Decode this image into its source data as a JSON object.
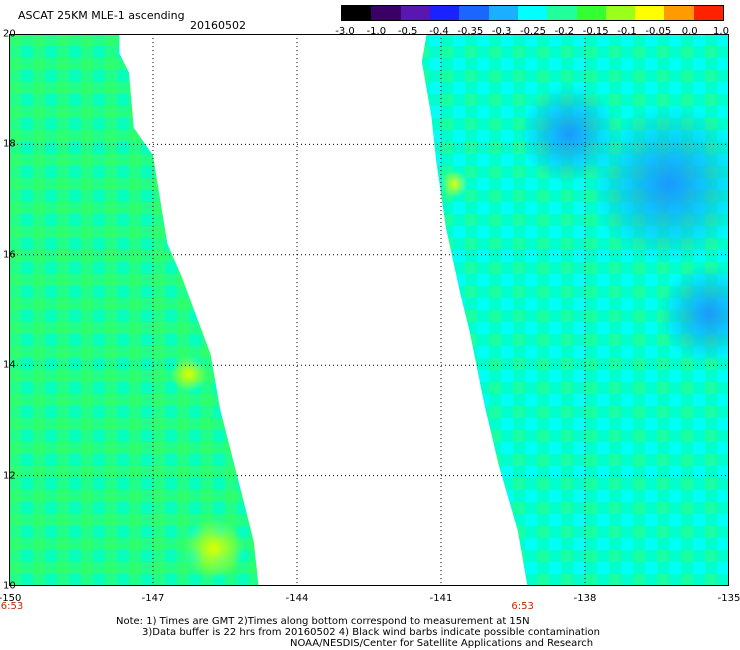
{
  "header": {
    "title": "ASCAT 25KM MLE-1 ascending",
    "date": "20160502"
  },
  "colorbar": {
    "labels": [
      "-3.0",
      "-1.0",
      "-0.5",
      "-0.4",
      "-0.35",
      "-0.3",
      "-0.25",
      "-0.2",
      "-0.15",
      "-0.1",
      "-0.05",
      "0.0",
      "1.0"
    ],
    "colors": [
      "#000000",
      "#3a0066",
      "#5a16b0",
      "#1a22ff",
      "#1a66ff",
      "#1ab0ff",
      "#00ffff",
      "#22ff9a",
      "#33ff33",
      "#9aff1a",
      "#ffff00",
      "#ff9a00",
      "#ff2200"
    ]
  },
  "map": {
    "x_range": [
      -150,
      -135
    ],
    "y_range": [
      10,
      20
    ],
    "x_ticks": [
      "-150",
      "-147",
      "-144",
      "-141",
      "-138",
      "-135"
    ],
    "y_ticks": [
      "20",
      "18",
      "16",
      "14",
      "12",
      "10"
    ],
    "swath_times": [
      {
        "label": "6:53",
        "lon": -150
      },
      {
        "label": "6:53",
        "lon": -139.3
      }
    ],
    "swaths": [
      {
        "name": "west-swath",
        "polygon": [
          [
            -150,
            20
          ],
          [
            -147.7,
            20
          ],
          [
            -147.7,
            19.65
          ],
          [
            -147.5,
            19.3
          ],
          [
            -147.4,
            18.3
          ],
          [
            -147,
            17.8
          ],
          [
            -146.7,
            16.2
          ],
          [
            -146.4,
            15.6
          ],
          [
            -145.8,
            14.2
          ],
          [
            -145.6,
            13.2
          ],
          [
            -145.1,
            11.5
          ],
          [
            -144.9,
            10.8
          ],
          [
            -144.8,
            10
          ],
          [
            -150,
            10
          ]
        ]
      },
      {
        "name": "east-swath",
        "polygon": [
          [
            -141.3,
            20
          ],
          [
            -135,
            20
          ],
          [
            -135,
            10
          ],
          [
            -139.2,
            10
          ],
          [
            -139.4,
            11
          ],
          [
            -139.8,
            12.2
          ],
          [
            -140.1,
            13.3
          ],
          [
            -140.4,
            14.6
          ],
          [
            -140.6,
            15.3
          ],
          [
            -140.9,
            16.5
          ],
          [
            -141.1,
            17.7
          ],
          [
            -141.2,
            18.5
          ],
          [
            -141.4,
            19.5
          ]
        ]
      }
    ]
  },
  "notes": {
    "line1": "Note: 1) Times are GMT 2)Times along bottom correspond to measurement at 15N",
    "line2": "3)Data buffer is 22 hrs from 20160502 4) Black wind barbs indicate possible contamination",
    "line3": "NOAA/NESDIS/Center for Satellite Applications and Research"
  }
}
